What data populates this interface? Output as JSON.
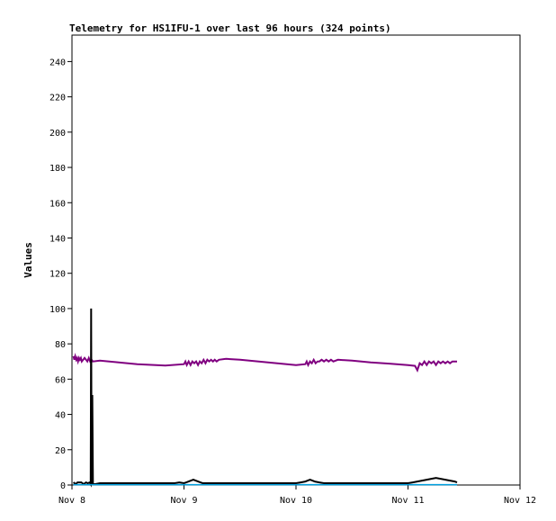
{
  "chart_data": {
    "type": "line",
    "title": "Telemetry for HS1IFU-1 over last 96 hours (324 points)",
    "xlabel": "",
    "ylabel": "Values",
    "x_ticks": [
      "Nov 8",
      "Nov 9",
      "Nov 10",
      "Nov 11",
      "Nov 12"
    ],
    "y_ticks": [
      0,
      20,
      40,
      60,
      80,
      100,
      120,
      140,
      160,
      180,
      200,
      220,
      240
    ],
    "xlim": [
      0,
      96
    ],
    "ylim": [
      0,
      255
    ],
    "grid": false,
    "series": [
      {
        "color": "#800080",
        "points": [
          [
            0.3,
            73
          ],
          [
            0.5,
            71
          ],
          [
            0.7,
            73
          ],
          [
            0.9,
            71
          ],
          [
            1.1,
            72
          ],
          [
            1.3,
            70
          ],
          [
            1.5,
            72
          ],
          [
            1.7,
            71
          ],
          [
            1.9,
            72
          ],
          [
            2.1,
            70
          ],
          [
            2.4,
            71
          ],
          [
            2.7,
            72
          ],
          [
            3.0,
            71
          ],
          [
            3.3,
            70
          ],
          [
            3.6,
            72
          ],
          [
            3.9,
            70
          ],
          [
            4.2,
            71
          ],
          [
            4.5,
            70
          ],
          [
            6,
            70.5
          ],
          [
            10,
            69.5
          ],
          [
            14,
            68.5
          ],
          [
            18,
            68
          ],
          [
            20,
            67.7
          ],
          [
            24,
            68.5
          ],
          [
            24.3,
            70
          ],
          [
            24.6,
            68
          ],
          [
            25,
            70
          ],
          [
            25.4,
            68
          ],
          [
            25.8,
            70
          ],
          [
            26.2,
            69
          ],
          [
            26.6,
            70
          ],
          [
            27,
            68
          ],
          [
            27.4,
            70
          ],
          [
            27.8,
            69
          ],
          [
            28.2,
            71
          ],
          [
            28.6,
            69
          ],
          [
            29,
            71
          ],
          [
            29.4,
            70
          ],
          [
            29.8,
            71
          ],
          [
            30.2,
            70
          ],
          [
            30.6,
            71
          ],
          [
            31,
            70
          ],
          [
            31.5,
            71
          ],
          [
            33,
            71.5
          ],
          [
            36,
            71
          ],
          [
            40,
            70
          ],
          [
            44,
            69
          ],
          [
            48,
            68
          ],
          [
            50,
            68.5
          ],
          [
            50.3,
            70
          ],
          [
            50.6,
            68
          ],
          [
            51,
            70
          ],
          [
            51.4,
            69
          ],
          [
            51.8,
            71
          ],
          [
            52.2,
            69
          ],
          [
            52.6,
            70
          ],
          [
            53,
            70
          ],
          [
            53.5,
            71
          ],
          [
            54,
            70
          ],
          [
            54.5,
            71
          ],
          [
            55,
            70
          ],
          [
            55.5,
            71
          ],
          [
            56,
            70
          ],
          [
            57,
            71
          ],
          [
            60,
            70.5
          ],
          [
            64,
            69.5
          ],
          [
            68,
            68.8
          ],
          [
            72,
            68
          ],
          [
            73.5,
            67.5
          ],
          [
            74,
            65
          ],
          [
            74.5,
            69
          ],
          [
            75,
            68
          ],
          [
            75.5,
            70
          ],
          [
            76,
            68
          ],
          [
            76.5,
            70
          ],
          [
            77,
            69
          ],
          [
            77.5,
            70
          ],
          [
            78,
            68
          ],
          [
            78.5,
            70
          ],
          [
            79,
            69
          ],
          [
            79.5,
            70
          ],
          [
            80,
            69
          ],
          [
            80.5,
            70
          ],
          [
            81,
            69
          ],
          [
            81.5,
            70
          ],
          [
            82,
            70
          ],
          [
            82.5,
            70
          ]
        ]
      },
      {
        "color": "#000000",
        "points": [
          [
            0.3,
            1.5
          ],
          [
            0.8,
            0.5
          ],
          [
            1.2,
            1.5
          ],
          [
            2,
            1.5
          ],
          [
            2.5,
            0.5
          ],
          [
            3,
            1.5
          ],
          [
            3.4,
            1
          ],
          [
            3.8,
            1.5
          ],
          [
            4.0,
            0.5
          ],
          [
            4.1,
            100
          ],
          [
            4.2,
            0.5
          ],
          [
            4.35,
            51
          ],
          [
            4.5,
            0.5
          ],
          [
            5,
            0.5
          ],
          [
            6,
            1
          ],
          [
            12,
            1
          ],
          [
            18,
            1
          ],
          [
            22,
            1
          ],
          [
            23,
            1.5
          ],
          [
            24,
            1
          ],
          [
            24.5,
            1.5
          ],
          [
            25,
            2
          ],
          [
            25.5,
            2.5
          ],
          [
            26,
            3
          ],
          [
            26.5,
            2.5
          ],
          [
            27,
            2
          ],
          [
            27.5,
            1.5
          ],
          [
            28,
            1
          ],
          [
            32,
            1
          ],
          [
            40,
            1
          ],
          [
            44,
            1
          ],
          [
            48,
            1
          ],
          [
            49,
            1.5
          ],
          [
            50,
            2
          ],
          [
            50.5,
            2.5
          ],
          [
            51,
            3
          ],
          [
            51.5,
            2.5
          ],
          [
            52,
            2
          ],
          [
            53,
            1.5
          ],
          [
            54,
            1
          ],
          [
            60,
            1
          ],
          [
            66,
            1
          ],
          [
            72,
            1
          ],
          [
            73,
            1.5
          ],
          [
            74,
            2
          ],
          [
            75,
            2.5
          ],
          [
            76,
            3
          ],
          [
            77,
            3.5
          ],
          [
            78,
            4
          ],
          [
            79,
            3.5
          ],
          [
            80,
            3
          ],
          [
            81,
            2.5
          ],
          [
            82,
            2
          ],
          [
            82.5,
            1.5
          ]
        ]
      },
      {
        "color": "#00a0e0",
        "points": [
          [
            0.3,
            0.2
          ],
          [
            10,
            0.2
          ],
          [
            20,
            0.2
          ],
          [
            30,
            0.2
          ],
          [
            40,
            0.2
          ],
          [
            50,
            0.2
          ],
          [
            60,
            0.2
          ],
          [
            70,
            0.2
          ],
          [
            82.5,
            0.2
          ]
        ]
      }
    ]
  }
}
